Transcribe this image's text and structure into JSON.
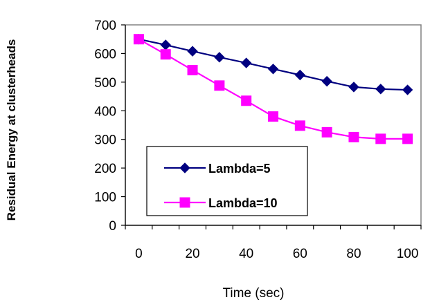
{
  "chart_data": {
    "type": "line",
    "title": "",
    "xlabel": "Time (sec)",
    "ylabel": "Residual Energy at clusterheads",
    "xlim": [
      -5,
      105
    ],
    "ylim": [
      0,
      700
    ],
    "x_ticks": [
      0,
      20,
      40,
      60,
      80,
      100
    ],
    "y_ticks": [
      0,
      100,
      200,
      300,
      400,
      500,
      600,
      700
    ],
    "grid": false,
    "legend_position": "lower-left",
    "x": [
      0,
      10,
      20,
      30,
      40,
      50,
      60,
      70,
      80,
      90,
      100
    ],
    "series": [
      {
        "name": "Lambda=5",
        "color": "#000080",
        "marker": "diamond",
        "values": [
          650,
          630,
          608,
          587,
          567,
          546,
          525,
          503,
          483,
          476,
          473
        ]
      },
      {
        "name": "Lambda=10",
        "color": "#ff00ff",
        "marker": "square",
        "values": [
          650,
          597,
          542,
          488,
          435,
          380,
          348,
          325,
          308,
          302,
          302
        ]
      }
    ]
  }
}
